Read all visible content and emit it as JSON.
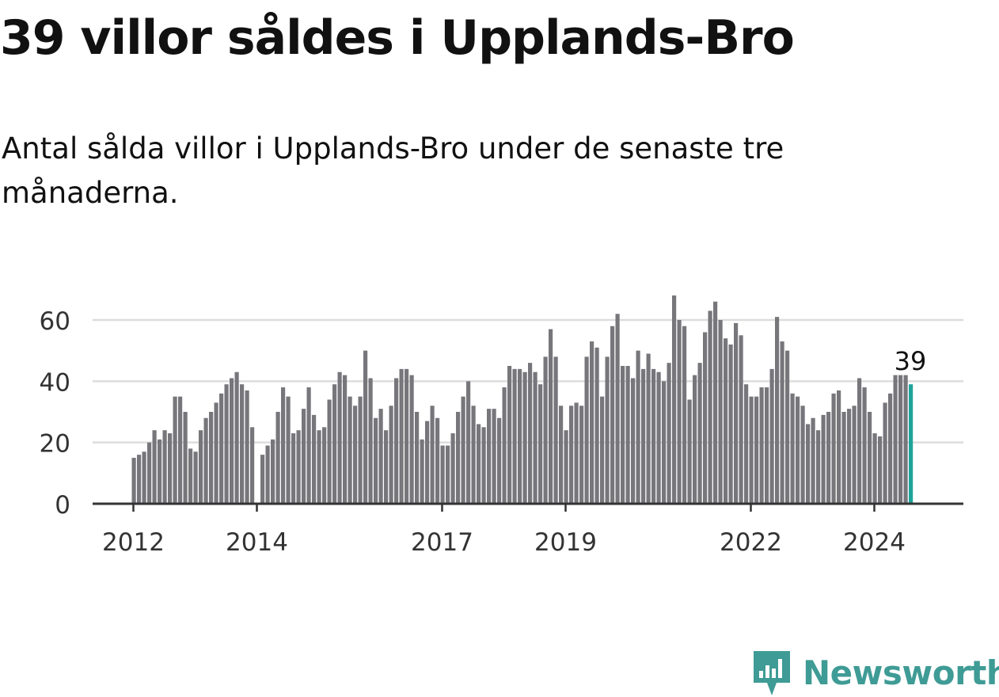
{
  "title": "39 villor såldes i Upplands-Bro",
  "subtitle": "Antal sålda villor i Upplands-Bro under de senaste tre månaderna.",
  "brand": {
    "name": "Newsworthy",
    "color": "#3f9b95"
  },
  "chart_data": {
    "type": "bar",
    "title": "",
    "xlabel": "",
    "ylabel": "",
    "ylim": [
      0,
      70
    ],
    "yticks": [
      0,
      20,
      40,
      60
    ],
    "grid": true,
    "bar_color": "#77767b",
    "highlight_color": "#1ea49a",
    "highlight_label": "39",
    "xtick_labels": [
      {
        "label": "2012",
        "month_index": 0
      },
      {
        "label": "2014",
        "month_index": 24
      },
      {
        "label": "2017",
        "month_index": 60
      },
      {
        "label": "2019",
        "month_index": 84
      },
      {
        "label": "2022",
        "month_index": 120
      },
      {
        "label": "2024",
        "month_index": 144
      }
    ],
    "values": [
      15,
      16,
      17,
      20,
      24,
      21,
      24,
      23,
      35,
      35,
      30,
      18,
      17,
      24,
      28,
      30,
      33,
      36,
      39,
      41,
      43,
      39,
      37,
      25,
      null,
      16,
      19,
      21,
      30,
      38,
      35,
      23,
      24,
      31,
      38,
      29,
      24,
      25,
      34,
      39,
      43,
      42,
      35,
      32,
      35,
      50,
      41,
      28,
      31,
      24,
      32,
      41,
      44,
      44,
      42,
      30,
      21,
      27,
      32,
      28,
      19,
      19,
      23,
      30,
      35,
      40,
      32,
      26,
      25,
      31,
      31,
      28,
      38,
      45,
      44,
      44,
      43,
      46,
      43,
      39,
      48,
      57,
      48,
      32,
      24,
      32,
      33,
      32,
      48,
      53,
      51,
      35,
      48,
      58,
      62,
      45,
      45,
      41,
      50,
      44,
      49,
      44,
      43,
      40,
      46,
      68,
      60,
      58,
      34,
      42,
      46,
      56,
      63,
      66,
      60,
      54,
      52,
      59,
      55,
      39,
      35,
      35,
      38,
      38,
      44,
      61,
      53,
      50,
      36,
      35,
      32,
      26,
      28,
      24,
      29,
      30,
      36,
      37,
      30,
      31,
      32,
      41,
      38,
      30,
      23,
      22,
      33,
      36,
      42,
      42,
      42,
      39
    ]
  }
}
